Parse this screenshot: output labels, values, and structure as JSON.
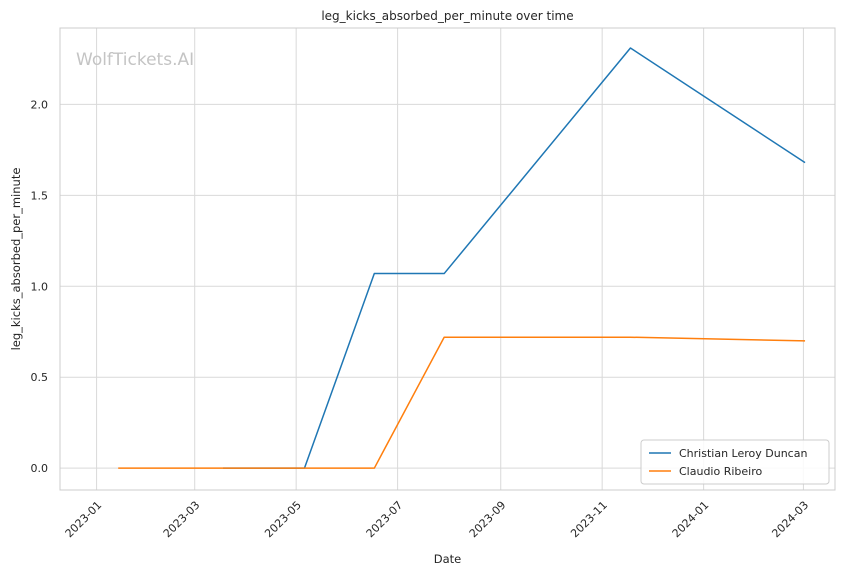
{
  "chart_data": {
    "type": "line",
    "title": "leg_kicks_absorbed_per_minute over time",
    "xlabel": "Date",
    "ylabel": "leg_kicks_absorbed_per_minute",
    "x_type": "date",
    "xlim": [
      "2022-12-10",
      "2024-03-20"
    ],
    "ylim": [
      -0.12,
      2.42
    ],
    "x_ticks": [
      "2023-01",
      "2023-03",
      "2023-05",
      "2023-07",
      "2023-09",
      "2023-11",
      "2024-01",
      "2024-03"
    ],
    "y_ticks": [
      0.0,
      0.5,
      1.0,
      1.5,
      2.0
    ],
    "y_tick_labels": [
      "0.0",
      "0.5",
      "1.0",
      "1.5",
      "2.0"
    ],
    "grid": true,
    "legend_position": "bottom-right",
    "watermark": "WolfTickets.AI",
    "series": [
      {
        "name": "Christian Leroy Duncan",
        "color": "#1f77b4",
        "x": [
          "2023-03-18",
          "2023-05-06",
          "2023-06-17",
          "2023-07-29",
          "2023-11-18",
          "2024-03-02"
        ],
        "y": [
          0.0,
          0.0,
          1.07,
          1.07,
          2.31,
          1.68
        ]
      },
      {
        "name": "Claudio Ribeiro",
        "color": "#ff7f0e",
        "x": [
          "2023-01-14",
          "2023-06-17",
          "2023-07-29",
          "2023-11-18",
          "2024-03-02"
        ],
        "y": [
          0.0,
          0.0,
          0.72,
          0.72,
          0.7
        ]
      }
    ]
  }
}
